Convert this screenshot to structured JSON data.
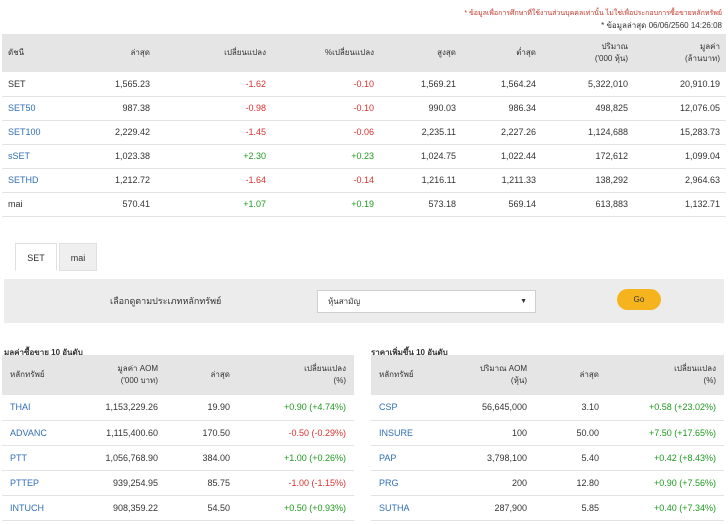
{
  "note": {
    "line1": "* ข้อมูลเพื่อการศึกษาที่ใช้งานส่วนบุคคลเท่านั้น ไม่ใช่เพื่อประกอบการซื้อขายหลักทรัพย์",
    "line2": "* ข้อมูลล่าสุด 06/06/2560 14:26:08"
  },
  "index_table": {
    "headers": [
      "ดัชนี",
      "ล่าสุด",
      "เปลี่ยนแปลง",
      "%เปลี่ยนแปลง",
      "สูงสุด",
      "ต่ำสุด",
      "ปริมาณ\n('000 หุ้น)",
      "มูลค่า\n(ล้านบาท)"
    ],
    "rows": [
      {
        "name": "SET",
        "link": false,
        "last": "1,565.23",
        "chg": "-1.62",
        "pct": "-0.10",
        "high": "1,569.21",
        "low": "1,564.24",
        "vol": "5,322,010",
        "val": "20,910.19",
        "dir": "down"
      },
      {
        "name": "SET50",
        "link": true,
        "last": "987.38",
        "chg": "-0.98",
        "pct": "-0.10",
        "high": "990.03",
        "low": "986.34",
        "vol": "498,825",
        "val": "12,076.05",
        "dir": "down"
      },
      {
        "name": "SET100",
        "link": true,
        "last": "2,229.42",
        "chg": "-1.45",
        "pct": "-0.06",
        "high": "2,235.11",
        "low": "2,227.26",
        "vol": "1,124,688",
        "val": "15,283.73",
        "dir": "down"
      },
      {
        "name": "sSET",
        "link": true,
        "last": "1,023.38",
        "chg": "+2.30",
        "pct": "+0.23",
        "high": "1,024.75",
        "low": "1,022.44",
        "vol": "172,612",
        "val": "1,099.04",
        "dir": "up"
      },
      {
        "name": "SETHD",
        "link": true,
        "last": "1,212.72",
        "chg": "-1.64",
        "pct": "-0.14",
        "high": "1,216.11",
        "low": "1,211.33",
        "vol": "138,292",
        "val": "2,964.63",
        "dir": "down"
      },
      {
        "name": "mai",
        "link": false,
        "last": "570.41",
        "chg": "+1.07",
        "pct": "+0.19",
        "high": "573.18",
        "low": "569.14",
        "vol": "613,883",
        "val": "1,132.71",
        "dir": "up"
      }
    ]
  },
  "tabs": [
    {
      "label": "SET",
      "active": true
    },
    {
      "label": "mai",
      "active": false
    }
  ],
  "filter": {
    "label": "เลือกดูตามประเภทหลักทรัพย์",
    "selected": "หุ้นสามัญ",
    "go_label": "Go"
  },
  "top_value": {
    "title": "มูลค่าซื้อขาย 10 อันดับ",
    "headers": [
      "หลักทรัพย์",
      "มูลค่า AOM\n('000 บาท)",
      "ล่าสุด",
      "เปลี่ยนแปลง\n(%)"
    ],
    "rows": [
      {
        "sym": "THAI",
        "value": "1,153,229.26",
        "last": "19.90",
        "chg": "+0.90 (+4.74%)",
        "dir": "up"
      },
      {
        "sym": "ADVANC",
        "value": "1,115,400.60",
        "last": "170.50",
        "chg": "-0.50 (-0.29%)",
        "dir": "down"
      },
      {
        "sym": "PTT",
        "value": "1,056,768.90",
        "last": "384.00",
        "chg": "+1.00 (+0.26%)",
        "dir": "up"
      },
      {
        "sym": "PTTEP",
        "value": "939,254.95",
        "last": "85.75",
        "chg": "-1.00 (-1.15%)",
        "dir": "down"
      },
      {
        "sym": "INTUCH",
        "value": "908,359.22",
        "last": "54.50",
        "chg": "+0.50 (+0.93%)",
        "dir": "up"
      }
    ]
  },
  "top_gain": {
    "title": "ราคาเพิ่มขึ้น 10 อันดับ",
    "headers": [
      "หลักทรัพย์",
      "ปริมาณ AOM\n(หุ้น)",
      "ล่าสุด",
      "เปลี่ยนแปลง\n(%)"
    ],
    "rows": [
      {
        "sym": "CSP",
        "value": "56,645,000",
        "last": "3.10",
        "chg": "+0.58 (+23.02%)",
        "dir": "up"
      },
      {
        "sym": "INSURE",
        "value": "100",
        "last": "50.00",
        "chg": "+7.50 (+17.65%)",
        "dir": "up"
      },
      {
        "sym": "PAP",
        "value": "3,798,100",
        "last": "5.40",
        "chg": "+0.42 (+8.43%)",
        "dir": "up"
      },
      {
        "sym": "PRG",
        "value": "200",
        "last": "12.80",
        "chg": "+0.90 (+7.56%)",
        "dir": "up"
      },
      {
        "sym": "SUTHA",
        "value": "287,900",
        "last": "5.85",
        "chg": "+0.40 (+7.34%)",
        "dir": "up"
      }
    ]
  },
  "colors": {
    "up": "#1e9a1e",
    "down": "#d9322f",
    "link": "#2f6fb5",
    "go": "#f5b31d"
  }
}
